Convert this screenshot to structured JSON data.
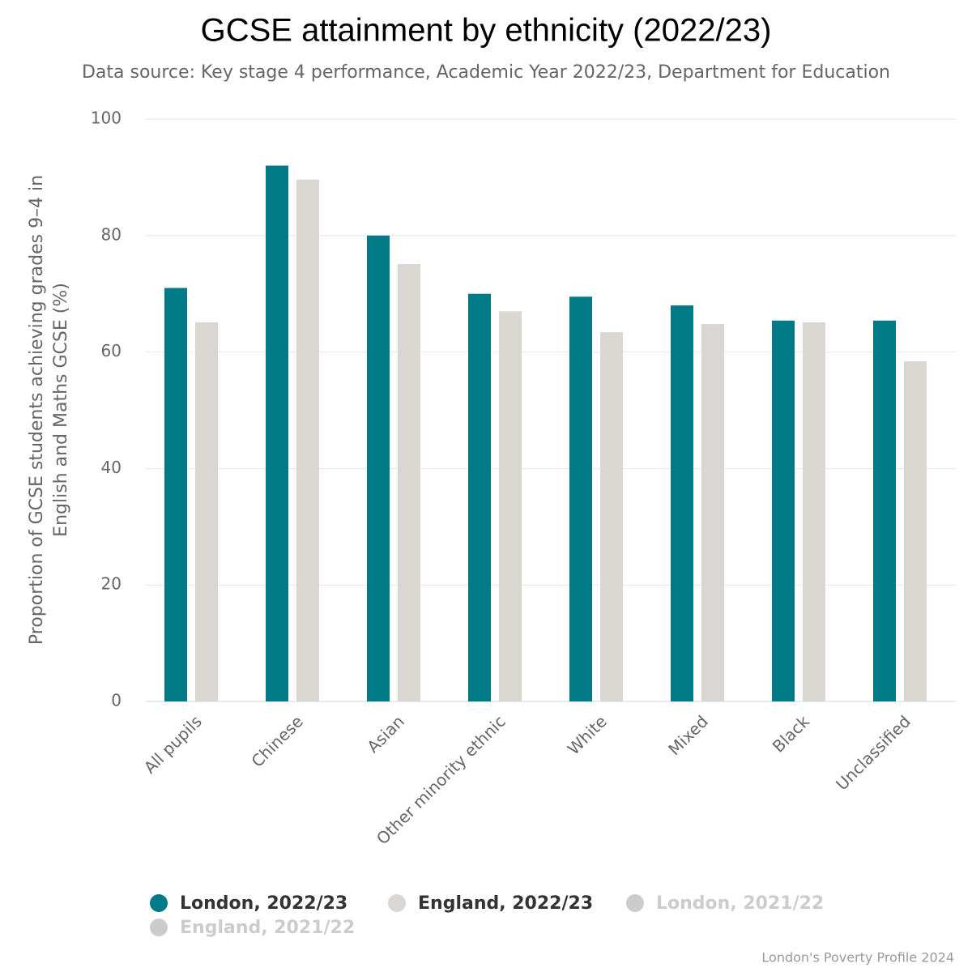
{
  "chart_data": {
    "type": "bar",
    "title": "GCSE attainment by ethnicity (2022/23)",
    "subtitle": "Data source: Key stage 4 performance, Academic Year 2022/23, Department for Education",
    "y_label": "Proportion of GCSE students achieving grades 9–4 in English and Maths GCSE (%)",
    "credit": "London's Poverty Profile 2024",
    "categories": [
      "All pupils",
      "Chinese",
      "Asian",
      "Other minority ethnic",
      "White",
      "Mixed",
      "Black",
      "Unclassified"
    ],
    "series": [
      {
        "name": "London, 2022/23",
        "color": "#007a87",
        "visible": true,
        "values": [
          71,
          92,
          80,
          70,
          69.5,
          68,
          65.4,
          65.4
        ]
      },
      {
        "name": "England, 2022/23",
        "color": "#dad7d3",
        "visible": true,
        "values": [
          65.1,
          89.6,
          75.1,
          67,
          63.4,
          64.8,
          65.1,
          58.4
        ]
      },
      {
        "name": "London, 2021/22",
        "color": "#cccccc",
        "visible": false,
        "values": [
          null,
          null,
          null,
          null,
          null,
          null,
          null,
          null
        ]
      },
      {
        "name": "England, 2021/22",
        "color": "#cccccc",
        "visible": false,
        "values": [
          null,
          null,
          null,
          null,
          null,
          null,
          null,
          null
        ]
      }
    ],
    "ylim": [
      0,
      100
    ],
    "yticks": [
      0,
      20,
      40,
      60,
      80,
      100
    ],
    "grid": true,
    "legend": "bottom"
  }
}
